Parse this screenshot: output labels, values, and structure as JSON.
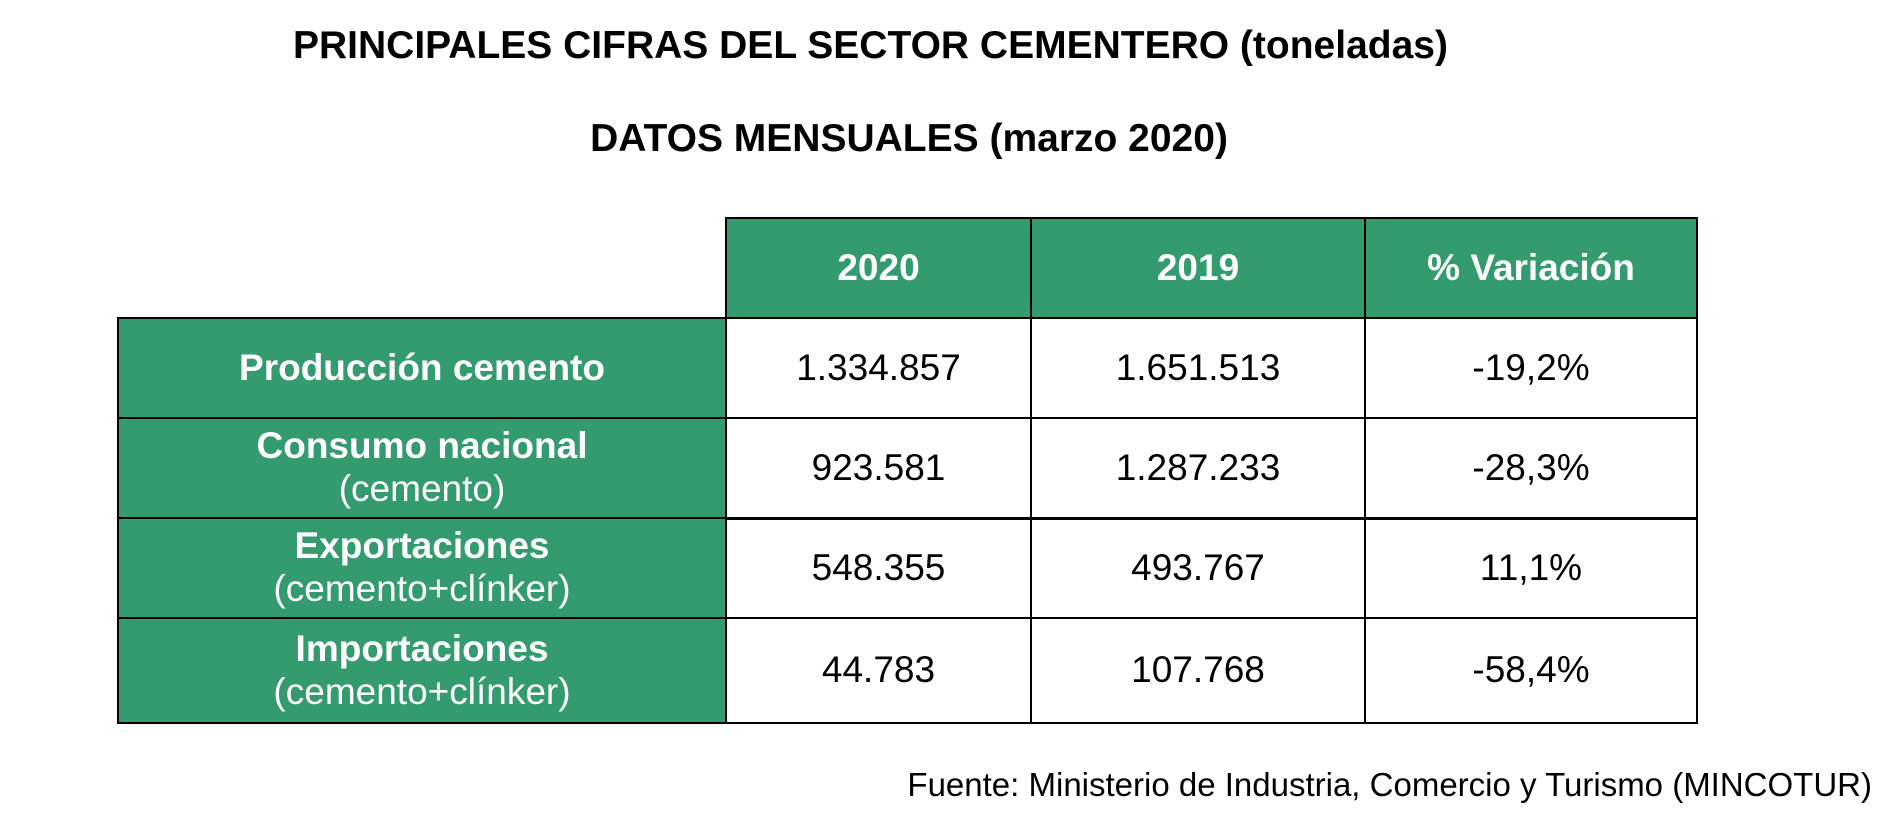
{
  "title": "PRINCIPALES CIFRAS DEL SECTOR CEMENTERO (toneladas)",
  "subtitle": "DATOS MENSUALES (marzo 2020)",
  "table": {
    "columns": [
      "2020",
      "2019",
      "% Variación"
    ],
    "rows": [
      {
        "label": "Producción cemento",
        "sublabel": "",
        "values": [
          "1.334.857",
          "1.651.513",
          "-19,2%"
        ]
      },
      {
        "label": "Consumo nacional",
        "sublabel": "(cemento)",
        "values": [
          "923.581",
          "1.287.233",
          "-28,3%"
        ]
      },
      {
        "label": "Exportaciones",
        "sublabel": "(cemento+clínker)",
        "values": [
          "548.355",
          "493.767",
          "11,1%"
        ]
      },
      {
        "label": "Importaciones",
        "sublabel": "(cemento+clínker)",
        "values": [
          "44.783",
          "107.768",
          "-58,4%"
        ]
      }
    ]
  },
  "source": "Fuente: Ministerio de Industria, Comercio y Turismo (MINCOTUR)",
  "colors": {
    "header_green": "#339b6d",
    "text_white": "#ffffff",
    "border": "#000000"
  }
}
